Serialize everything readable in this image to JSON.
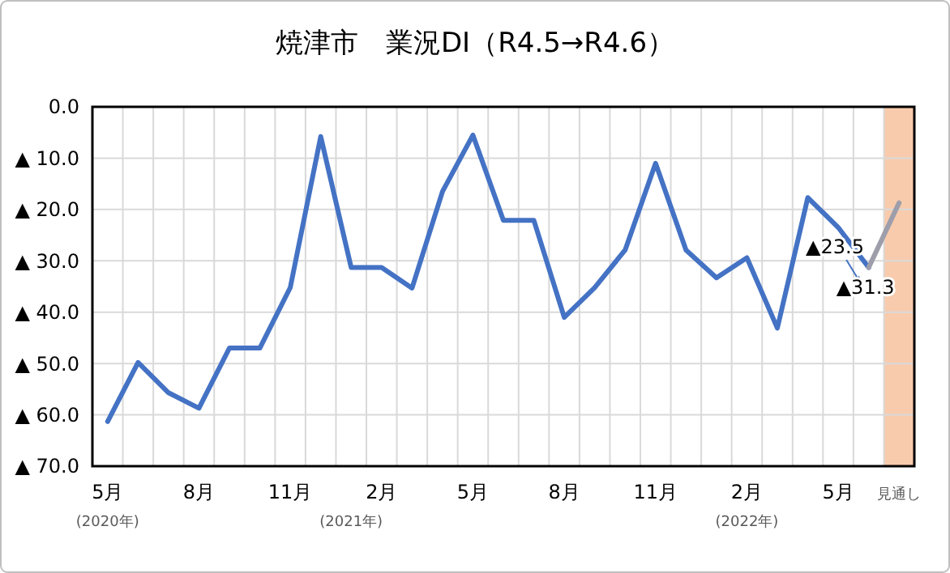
{
  "chart_data": {
    "type": "line",
    "title": "焼津市　業況DI（R4.5→R4.6）",
    "categories": [
      "5月",
      null,
      null,
      "8月",
      null,
      null,
      "11月",
      null,
      null,
      "2月",
      null,
      null,
      "5月",
      null,
      null,
      "8月",
      null,
      null,
      "11月",
      null,
      null,
      "2月",
      null,
      null,
      "5月",
      null,
      "見通し"
    ],
    "annotations": [
      "(2020年)",
      "(2021年)",
      "(2022年)",
      {
        "text": "▲23.5",
        "y": -23.5
      },
      {
        "text": "▲31.3",
        "y": -31.3
      }
    ],
    "series": [
      {
        "color": "#4472c4",
        "values": [
          -61.3,
          -49.8,
          -55.7,
          -58.7,
          -47.0,
          -47.0,
          -35.2,
          -5.8,
          -31.3,
          -31.3,
          -35.3,
          -16.5,
          -5.5,
          -22.1,
          -22.1,
          -41.0,
          -35.2,
          -27.9,
          -11.0,
          -27.9,
          -33.3,
          -29.4,
          -43.1,
          -17.7,
          -23.5,
          -31.3,
          null
        ]
      },
      {
        "color": "#9e9eab",
        "values": [
          null,
          null,
          null,
          null,
          null,
          null,
          null,
          null,
          null,
          null,
          null,
          null,
          null,
          null,
          null,
          null,
          null,
          null,
          null,
          null,
          null,
          null,
          null,
          null,
          null,
          -31.3,
          -18.7
        ]
      }
    ],
    "ylim": [
      -70,
      0
    ],
    "yticks": [
      {
        "value": 0,
        "label": "0.0"
      },
      {
        "value": -10,
        "label": "▲ 10.0"
      },
      {
        "value": -20,
        "label": "▲ 20.0"
      },
      {
        "value": -30,
        "label": "▲ 30.0"
      },
      {
        "value": -40,
        "label": "▲ 40.0"
      },
      {
        "value": -50,
        "label": "▲ 50.0"
      },
      {
        "value": -60,
        "label": "▲ 60.0"
      },
      {
        "value": -70,
        "label": "▲ 70.0"
      }
    ],
    "bands": [
      {
        "axis": "x",
        "from": "見通し",
        "to": "見通し",
        "color": "#f8cbad"
      }
    ],
    "grid": true,
    "marker": "none",
    "line_style": "solid"
  }
}
